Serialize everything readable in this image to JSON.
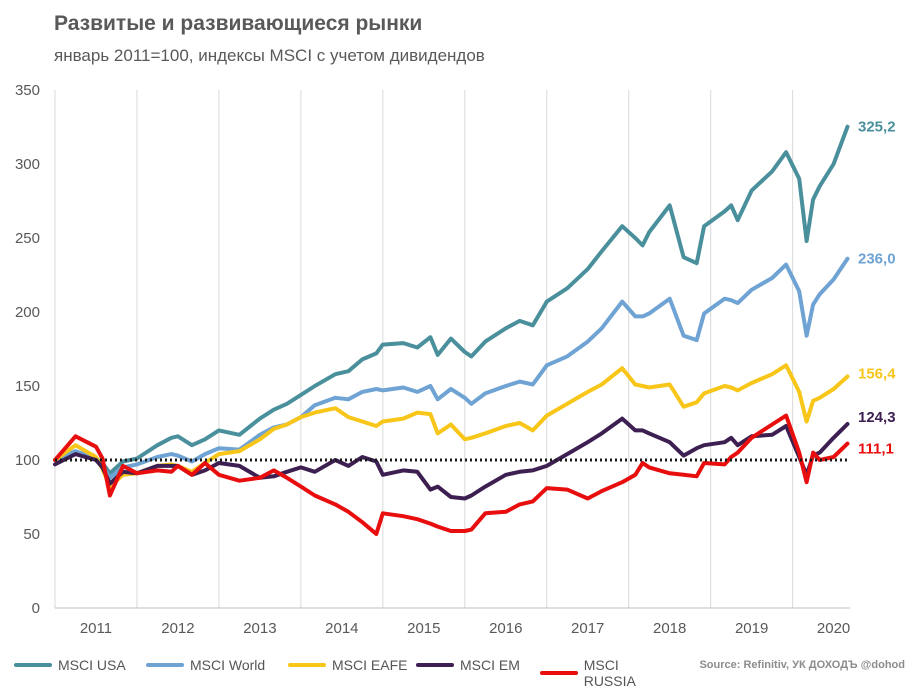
{
  "title": "Развитые и развивающиеся рынки",
  "subtitle": "январь 2011=100, индексы MSCI с учетом дивидендов",
  "source": "Source: Refinitiv, УК ДОХОДЪ @dohod",
  "chart_data": {
    "type": "line",
    "ylim": [
      0,
      350
    ],
    "yticks": [
      "0",
      "50",
      "100",
      "150",
      "200",
      "250",
      "300",
      "350"
    ],
    "ytick_values": [
      0,
      50,
      100,
      150,
      200,
      250,
      300,
      350
    ],
    "xlim": [
      2011.0,
      2020.7
    ],
    "xticks": [
      "2011",
      "2012",
      "2013",
      "2014",
      "2015",
      "2016",
      "2017",
      "2018",
      "2019",
      "2020"
    ],
    "xtick_positions": [
      2011.5,
      2012.5,
      2013.5,
      2014.5,
      2015.5,
      2016.5,
      2017.5,
      2018.5,
      2019.5,
      2020.5
    ],
    "grid": "vertical",
    "legend": "bottom",
    "reference_line": 100,
    "series": [
      {
        "name": "MSCI USA",
        "color": "#4a8f9c",
        "end_label": "325,2",
        "x": [
          2011.0,
          2011.25,
          2011.5,
          2011.58,
          2011.67,
          2011.83,
          2012.0,
          2012.25,
          2012.42,
          2012.5,
          2012.67,
          2012.83,
          2013.0,
          2013.25,
          2013.5,
          2013.67,
          2013.83,
          2014.0,
          2014.17,
          2014.42,
          2014.58,
          2014.75,
          2014.92,
          2015.0,
          2015.25,
          2015.42,
          2015.58,
          2015.67,
          2015.83,
          2016.0,
          2016.08,
          2016.25,
          2016.5,
          2016.67,
          2016.83,
          2017.0,
          2017.25,
          2017.5,
          2017.67,
          2017.92,
          2018.08,
          2018.17,
          2018.25,
          2018.5,
          2018.67,
          2018.83,
          2018.92,
          2019.17,
          2019.25,
          2019.33,
          2019.5,
          2019.75,
          2019.92,
          2020.08,
          2020.17,
          2020.25,
          2020.33,
          2020.5,
          2020.67
        ],
        "y": [
          100,
          104,
          101,
          98,
          91,
          99,
          101,
          110,
          115,
          116,
          110,
          114,
          120,
          117,
          128,
          134,
          138,
          144,
          150,
          158,
          160,
          168,
          172,
          178,
          179,
          176,
          183,
          171,
          182,
          173,
          170,
          180,
          189,
          194,
          191,
          207,
          216,
          229,
          241,
          258,
          250,
          245,
          254,
          272,
          237,
          233,
          258,
          268,
          272,
          262,
          282,
          295,
          308,
          290,
          248,
          276,
          285,
          300,
          325.2
        ]
      },
      {
        "name": "MSCI World",
        "color": "#6ea3d3",
        "end_label": "236,0",
        "x": [
          2011.0,
          2011.25,
          2011.5,
          2011.58,
          2011.67,
          2011.83,
          2012.0,
          2012.25,
          2012.42,
          2012.5,
          2012.67,
          2012.83,
          2013.0,
          2013.25,
          2013.5,
          2013.67,
          2013.83,
          2014.0,
          2014.17,
          2014.42,
          2014.58,
          2014.75,
          2014.92,
          2015.0,
          2015.25,
          2015.42,
          2015.58,
          2015.67,
          2015.83,
          2016.0,
          2016.08,
          2016.25,
          2016.5,
          2016.67,
          2016.83,
          2017.0,
          2017.25,
          2017.5,
          2017.67,
          2017.92,
          2018.08,
          2018.17,
          2018.25,
          2018.5,
          2018.67,
          2018.83,
          2018.92,
          2019.17,
          2019.25,
          2019.33,
          2019.5,
          2019.75,
          2019.92,
          2020.08,
          2020.17,
          2020.25,
          2020.33,
          2020.5,
          2020.67
        ],
        "y": [
          100,
          106,
          101,
          96,
          88,
          95,
          97,
          102,
          104,
          103,
          99,
          104,
          108,
          107,
          117,
          122,
          124,
          129,
          137,
          142,
          141,
          146,
          148,
          147,
          149,
          146,
          150,
          141,
          148,
          142,
          138,
          145,
          150,
          153,
          151,
          164,
          170,
          180,
          189,
          207,
          197,
          197,
          199,
          209,
          184,
          181,
          199,
          209,
          208,
          206,
          215,
          223,
          232,
          214,
          184,
          205,
          212,
          222,
          236
        ]
      },
      {
        "name": "MSCI EAFE",
        "color": "#f7c619",
        "end_label": "156,4",
        "x": [
          2011.0,
          2011.25,
          2011.5,
          2011.58,
          2011.67,
          2011.83,
          2012.0,
          2012.25,
          2012.42,
          2012.5,
          2012.67,
          2012.83,
          2013.0,
          2013.25,
          2013.5,
          2013.67,
          2013.83,
          2014.0,
          2014.17,
          2014.42,
          2014.58,
          2014.75,
          2014.92,
          2015.0,
          2015.25,
          2015.42,
          2015.58,
          2015.67,
          2015.83,
          2016.0,
          2016.08,
          2016.25,
          2016.5,
          2016.67,
          2016.83,
          2017.0,
          2017.25,
          2017.5,
          2017.67,
          2017.92,
          2018.08,
          2018.17,
          2018.25,
          2018.5,
          2018.67,
          2018.83,
          2018.92,
          2019.17,
          2019.25,
          2019.33,
          2019.5,
          2019.75,
          2019.92,
          2020.08,
          2020.17,
          2020.25,
          2020.33,
          2020.5,
          2020.67
        ],
        "y": [
          100,
          110,
          102,
          94,
          82,
          90,
          91,
          96,
          97,
          96,
          92,
          98,
          104,
          106,
          114,
          121,
          124,
          129,
          132,
          135,
          129,
          126,
          123,
          126,
          128,
          132,
          131,
          118,
          124,
          114,
          115,
          118,
          123,
          125,
          120,
          130,
          138,
          146,
          151,
          162,
          151,
          150,
          149,
          151,
          136,
          139,
          145,
          150,
          149,
          147,
          152,
          158,
          164,
          146,
          126,
          140,
          142,
          148,
          156.4
        ]
      },
      {
        "name": "MSCI EM",
        "color": "#3d2051",
        "end_label": "124,3",
        "x": [
          2011.0,
          2011.25,
          2011.5,
          2011.58,
          2011.67,
          2011.83,
          2012.0,
          2012.25,
          2012.42,
          2012.5,
          2012.67,
          2012.83,
          2013.0,
          2013.25,
          2013.5,
          2013.67,
          2013.83,
          2014.0,
          2014.17,
          2014.42,
          2014.58,
          2014.75,
          2014.92,
          2015.0,
          2015.25,
          2015.42,
          2015.58,
          2015.67,
          2015.83,
          2016.0,
          2016.08,
          2016.25,
          2016.5,
          2016.67,
          2016.83,
          2017.0,
          2017.25,
          2017.5,
          2017.67,
          2017.92,
          2018.08,
          2018.17,
          2018.25,
          2018.5,
          2018.67,
          2018.83,
          2018.92,
          2019.17,
          2019.25,
          2019.33,
          2019.5,
          2019.75,
          2019.92,
          2020.08,
          2020.17,
          2020.25,
          2020.33,
          2020.5,
          2020.67
        ],
        "y": [
          97,
          104,
          100,
          95,
          84,
          92,
          91,
          96,
          96,
          96,
          90,
          93,
          98,
          96,
          88,
          89,
          92,
          95,
          92,
          100,
          96,
          102,
          99,
          90,
          93,
          92,
          80,
          82,
          75,
          74,
          76,
          82,
          90,
          92,
          93,
          96,
          104,
          112,
          118,
          128,
          120,
          120,
          118,
          112,
          103,
          108,
          110,
          112,
          115,
          110,
          116,
          117,
          123,
          102,
          90,
          103,
          105,
          115,
          124.3
        ]
      },
      {
        "name": "MSCI RUSSIA",
        "color": "#e80e0e",
        "end_label": "111,1",
        "x": [
          2011.0,
          2011.25,
          2011.5,
          2011.58,
          2011.67,
          2011.83,
          2012.0,
          2012.25,
          2012.42,
          2012.5,
          2012.67,
          2012.83,
          2013.0,
          2013.25,
          2013.5,
          2013.67,
          2013.83,
          2014.0,
          2014.17,
          2014.42,
          2014.58,
          2014.75,
          2014.92,
          2015.0,
          2015.25,
          2015.42,
          2015.58,
          2015.67,
          2015.83,
          2016.0,
          2016.08,
          2016.25,
          2016.5,
          2016.67,
          2016.83,
          2017.0,
          2017.25,
          2017.5,
          2017.67,
          2017.92,
          2018.08,
          2018.17,
          2018.25,
          2018.5,
          2018.67,
          2018.83,
          2018.92,
          2019.17,
          2019.25,
          2019.33,
          2019.5,
          2019.75,
          2019.92,
          2020.08,
          2020.17,
          2020.25,
          2020.33,
          2020.5,
          2020.67
        ],
        "y": [
          100,
          116,
          109,
          101,
          76,
          96,
          91,
          93,
          92,
          96,
          90,
          98,
          90,
          86,
          88,
          93,
          88,
          82,
          76,
          70,
          65,
          58,
          50,
          64,
          62,
          60,
          57,
          55,
          52,
          52,
          53,
          64,
          65,
          70,
          72,
          81,
          80,
          74,
          79,
          85,
          90,
          98,
          95,
          91,
          90,
          89,
          98,
          97,
          102,
          105,
          115,
          124,
          130,
          105,
          85,
          105,
          100,
          102,
          111.1
        ]
      }
    ]
  }
}
